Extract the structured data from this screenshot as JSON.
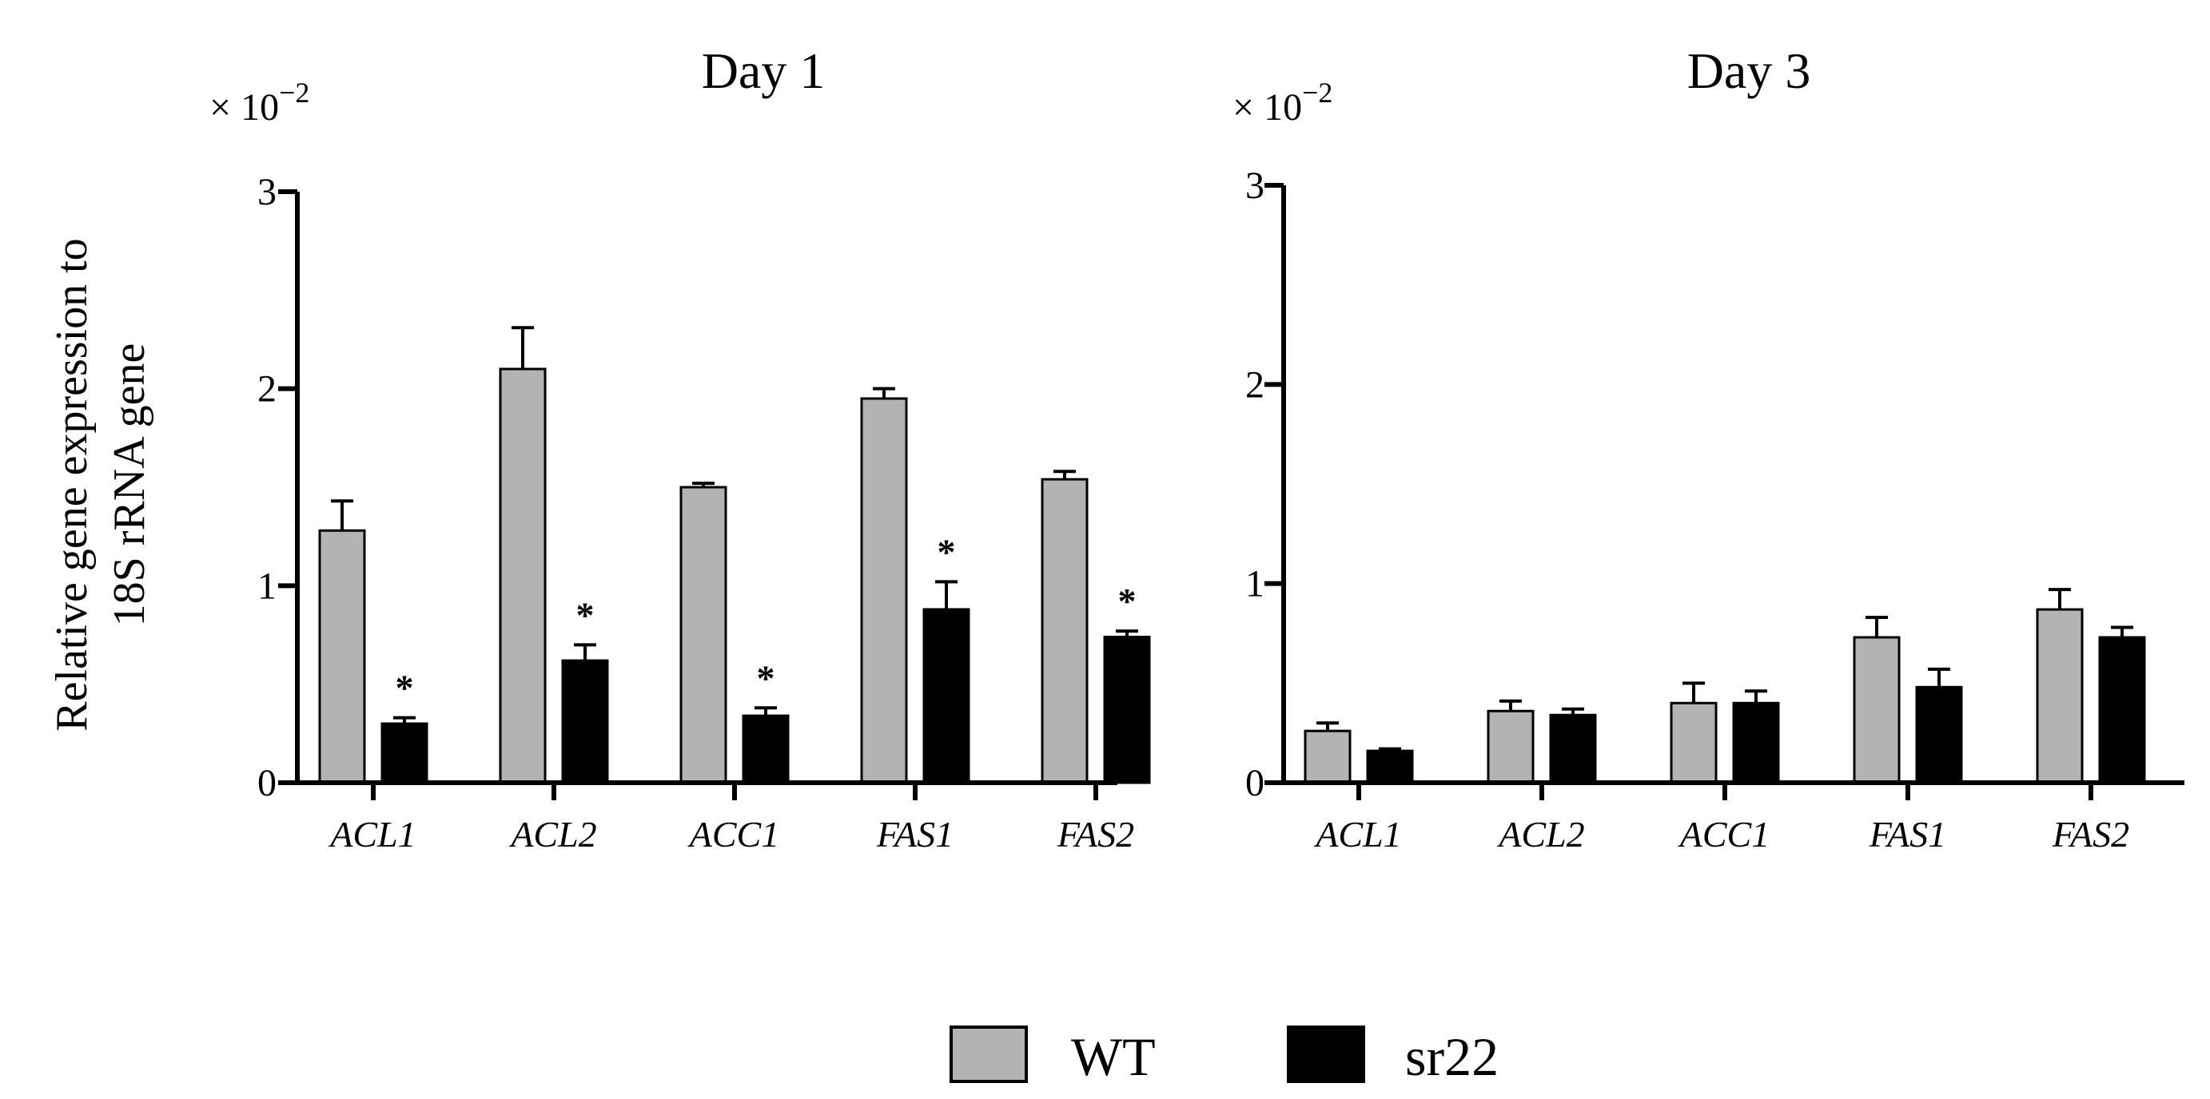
{
  "chart_data": [
    {
      "type": "bar",
      "title": "Day 1",
      "multiplier_base": "× 10",
      "multiplier_exponent": "−2",
      "ylabel_lines": [
        "Relative gene expression to",
        "18S rRNA gene"
      ],
      "ylim": [
        0,
        3
      ],
      "yticks": [
        "0",
        "1",
        "2",
        "3"
      ],
      "categories": [
        "ACL1",
        "ACL2",
        "ACC1",
        "FAS1",
        "FAS2"
      ],
      "series": [
        {
          "name": "WT",
          "color": "#b3b3b3",
          "values": [
            1.28,
            2.1,
            1.5,
            1.95,
            1.54
          ],
          "errors": [
            0.15,
            0.21,
            0.02,
            0.05,
            0.04
          ]
        },
        {
          "name": "sr22",
          "color": "#000000",
          "values": [
            0.3,
            0.62,
            0.34,
            0.88,
            0.74
          ],
          "errors": [
            0.03,
            0.08,
            0.04,
            0.14,
            0.03
          ]
        }
      ],
      "significance": [
        "*",
        "*",
        "*",
        "*",
        "*"
      ]
    },
    {
      "type": "bar",
      "title": "Day 3",
      "multiplier_base": "× 10",
      "multiplier_exponent": "−2",
      "ylim": [
        0,
        3
      ],
      "yticks": [
        "0",
        "1",
        "2",
        "3"
      ],
      "categories": [
        "ACL1",
        "ACL2",
        "ACC1",
        "FAS1",
        "FAS2"
      ],
      "series": [
        {
          "name": "WT",
          "color": "#b3b3b3",
          "values": [
            0.26,
            0.36,
            0.4,
            0.73,
            0.87
          ],
          "errors": [
            0.04,
            0.05,
            0.1,
            0.1,
            0.1
          ]
        },
        {
          "name": "sr22",
          "color": "#000000",
          "values": [
            0.16,
            0.34,
            0.4,
            0.48,
            0.73
          ],
          "errors": [
            0.01,
            0.03,
            0.06,
            0.09,
            0.05
          ]
        }
      ],
      "significance": [
        "",
        "",
        "",
        "",
        ""
      ]
    }
  ],
  "legend": [
    {
      "label": "WT",
      "color": "#b3b3b3"
    },
    {
      "label": "sr22",
      "color": "#000000"
    }
  ]
}
